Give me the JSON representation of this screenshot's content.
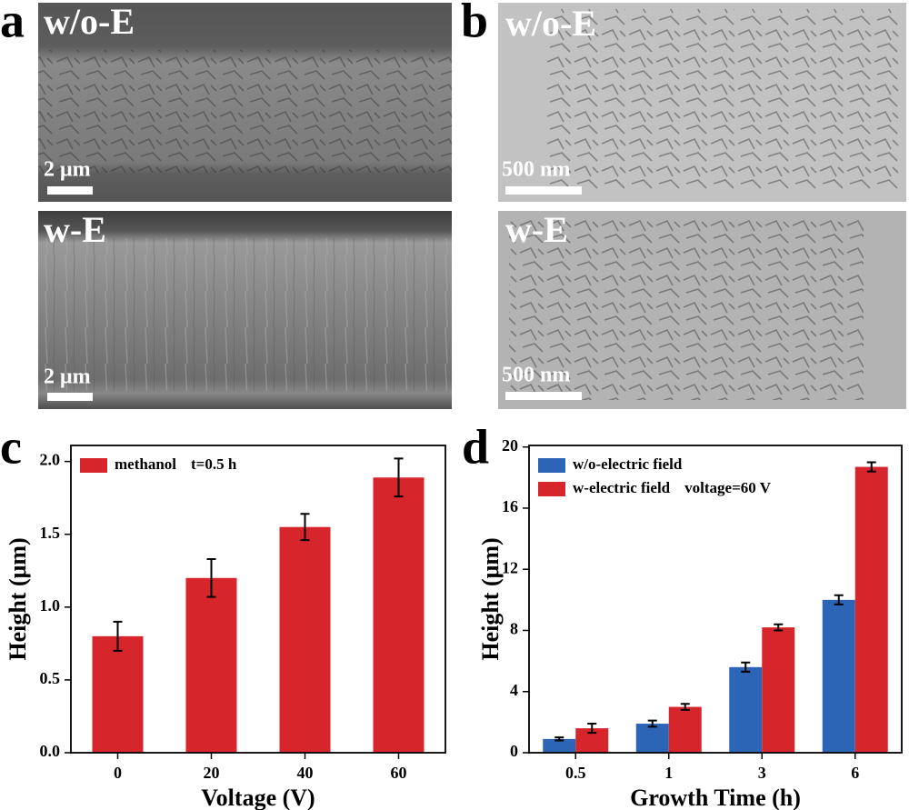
{
  "panel_labels": [
    "a",
    "b",
    "c",
    "d"
  ],
  "micrographs": [
    {
      "label": "w/o-E",
      "scale": "2 μm"
    },
    {
      "label": "w-E",
      "scale": "2 μm"
    },
    {
      "label": "w/o-E",
      "scale": "500 nm"
    },
    {
      "label": "w-E",
      "scale": "500 nm"
    }
  ],
  "chart_data": [
    {
      "type": "bar",
      "xlabel": "Voltage (V)",
      "ylabel": "Height (μm)",
      "categories": [
        "0",
        "20",
        "40",
        "60"
      ],
      "series": [
        {
          "name": "methanol",
          "color": "#d7262b",
          "values": [
            0.8,
            1.2,
            1.55,
            1.89
          ],
          "errors": [
            0.1,
            0.13,
            0.09,
            0.13
          ]
        }
      ],
      "annotation": "t=0.5 h",
      "ylim": [
        0,
        2.11
      ],
      "yticks": [
        {
          "value": 0,
          "label": "0.0"
        },
        {
          "value": 0.5,
          "label": "0.5"
        },
        {
          "value": 1,
          "label": "1.0"
        },
        {
          "value": 1.5,
          "label": "1.5"
        },
        {
          "value": 2,
          "label": "2.0"
        }
      ],
      "legend": "upper left"
    },
    {
      "type": "bar",
      "xlabel": "Growth Time (h)",
      "ylabel": "Height (μm)",
      "categories": [
        "0.5",
        "1",
        "3",
        "6"
      ],
      "series": [
        {
          "name": "w/o-electric field",
          "color": "#2c64b6",
          "values": [
            0.9,
            1.9,
            5.6,
            10.0
          ],
          "errors": [
            0.1,
            0.2,
            0.3,
            0.3
          ]
        },
        {
          "name": "w-electric field",
          "color": "#d7262b",
          "values": [
            1.6,
            3.0,
            8.2,
            18.7
          ],
          "errors": [
            0.3,
            0.2,
            0.2,
            0.3
          ]
        }
      ],
      "annotation": "voltage=60 V",
      "ylim": [
        0,
        20.1
      ],
      "yticks": [
        0,
        4,
        8,
        12,
        16,
        20
      ],
      "legend": "upper left"
    }
  ]
}
